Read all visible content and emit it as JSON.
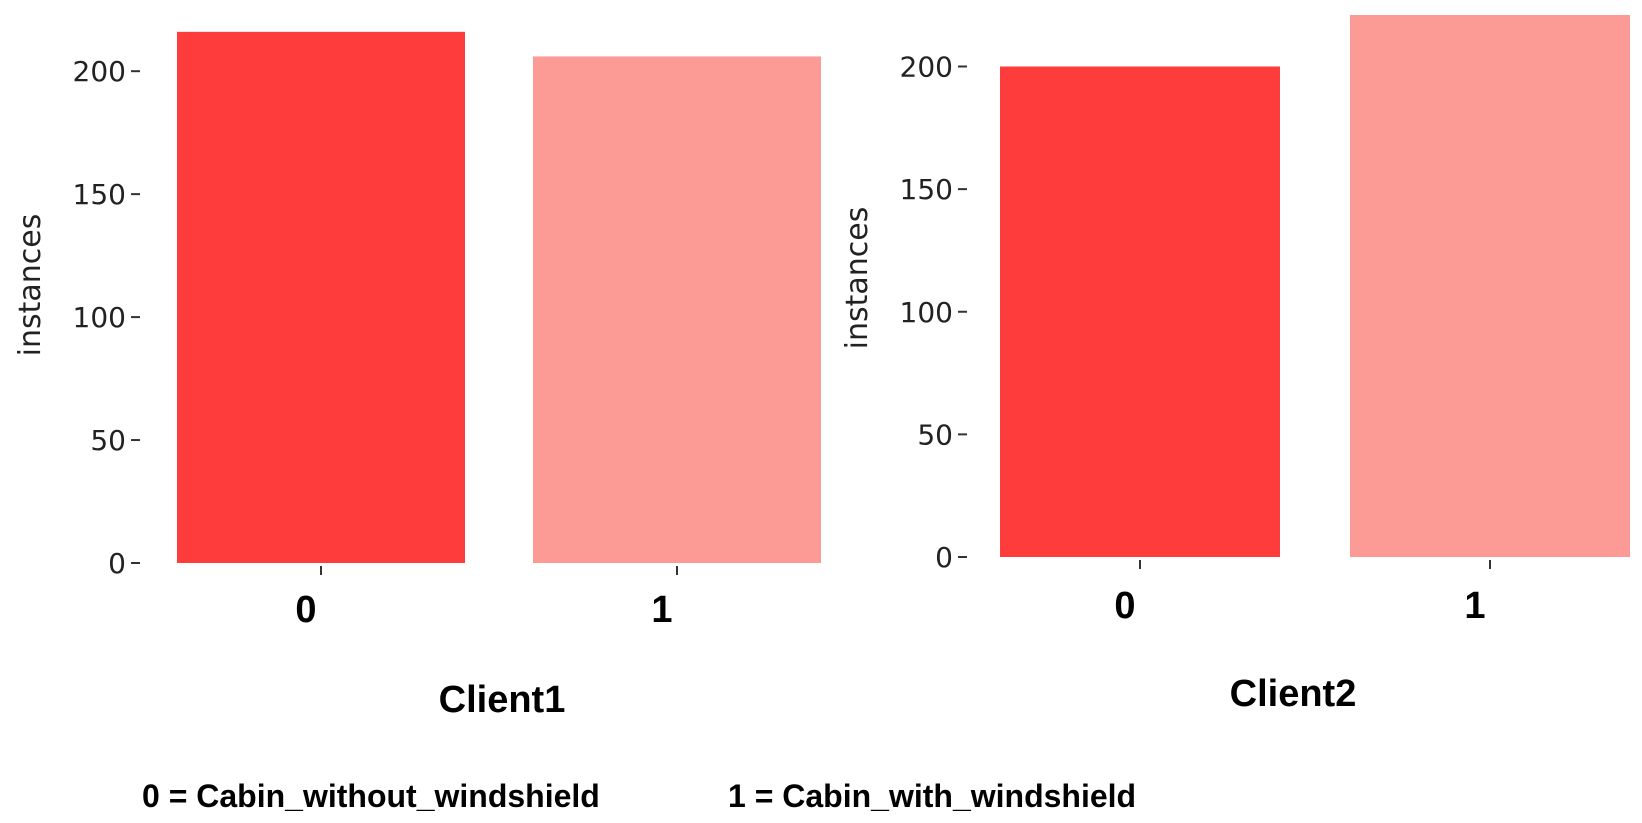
{
  "colors": {
    "class0": "#ff3c3c",
    "class1": "#fc9b96",
    "text": "#222222",
    "tick": "#333333"
  },
  "chart_data": [
    {
      "type": "bar",
      "title": "Client1",
      "ylabel": "instances",
      "xlabel": "",
      "categories": [
        "0",
        "1"
      ],
      "values": [
        216,
        206
      ],
      "ylim": [
        0,
        220
      ],
      "yticks": [
        0,
        50,
        100,
        150,
        200
      ],
      "grid": false
    },
    {
      "type": "bar",
      "title": "Client2",
      "ylabel": "instances",
      "xlabel": "",
      "categories": [
        "0",
        "1"
      ],
      "values": [
        200,
        221
      ],
      "ylim": [
        0,
        221
      ],
      "yticks": [
        0,
        50,
        100,
        150,
        200
      ],
      "grid": false
    }
  ],
  "legend": {
    "class0": "0 = Cabin_without_windshield",
    "class1": "1 = Cabin_with_windshield"
  }
}
